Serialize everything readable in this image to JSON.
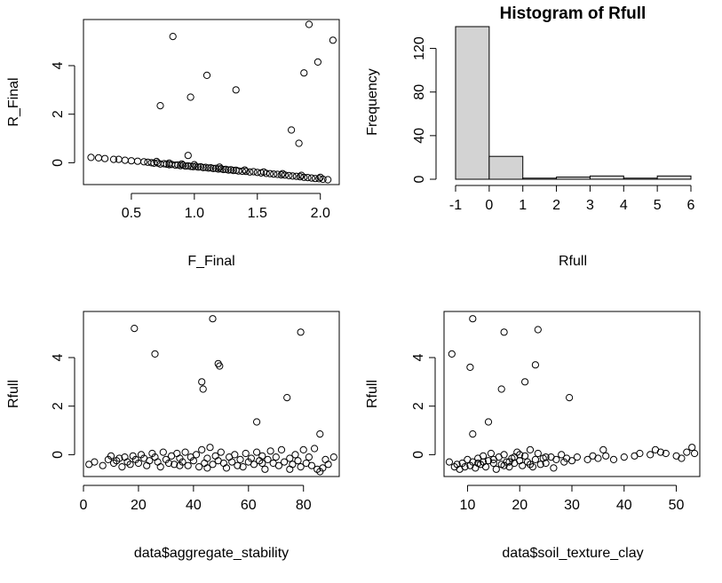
{
  "chart_data": [
    {
      "type": "scatter",
      "xlabel": "F_Final",
      "ylabel": "R_Final",
      "xlim": [
        0.12,
        2.15
      ],
      "ylim": [
        -0.9,
        5.9
      ],
      "xticks": [
        0.5,
        1.0,
        1.5,
        2.0
      ],
      "xtick_labels": [
        "0.5",
        "1.0",
        "1.5",
        "2.0"
      ],
      "yticks": [
        0,
        2,
        4
      ],
      "ytick_labels": [
        "0",
        "2",
        "4"
      ],
      "points": [
        [
          0.83,
          5.2
        ],
        [
          1.91,
          5.7
        ],
        [
          2.1,
          5.05
        ],
        [
          1.98,
          4.15
        ],
        [
          1.1,
          3.6
        ],
        [
          1.87,
          3.7
        ],
        [
          0.73,
          2.35
        ],
        [
          0.97,
          2.7
        ],
        [
          1.33,
          3.0
        ],
        [
          1.77,
          1.35
        ],
        [
          1.83,
          0.8
        ],
        [
          0.95,
          0.3
        ],
        [
          0.18,
          0.22
        ],
        [
          0.24,
          0.2
        ],
        [
          0.29,
          0.17
        ],
        [
          0.36,
          0.14
        ],
        [
          0.4,
          0.14
        ],
        [
          0.45,
          0.1
        ],
        [
          0.5,
          0.08
        ],
        [
          0.55,
          0.06
        ],
        [
          0.6,
          0.04
        ],
        [
          0.63,
          0.02
        ],
        [
          0.66,
          0.0
        ],
        [
          0.68,
          -0.02
        ],
        [
          0.71,
          -0.01
        ],
        [
          0.73,
          -0.05
        ],
        [
          0.76,
          -0.04
        ],
        [
          0.78,
          -0.06
        ],
        [
          0.8,
          -0.08
        ],
        [
          0.82,
          -0.07
        ],
        [
          0.85,
          -0.1
        ],
        [
          0.87,
          -0.09
        ],
        [
          0.89,
          -0.12
        ],
        [
          0.91,
          -0.1
        ],
        [
          0.93,
          -0.14
        ],
        [
          0.95,
          -0.13
        ],
        [
          0.97,
          -0.15
        ],
        [
          0.99,
          -0.16
        ],
        [
          1.01,
          -0.15
        ],
        [
          1.03,
          -0.18
        ],
        [
          1.05,
          -0.17
        ],
        [
          1.07,
          -0.2
        ],
        [
          1.09,
          -0.19
        ],
        [
          1.11,
          -0.22
        ],
        [
          1.13,
          -0.21
        ],
        [
          1.15,
          -0.24
        ],
        [
          1.17,
          -0.23
        ],
        [
          1.19,
          -0.26
        ],
        [
          1.21,
          -0.25
        ],
        [
          1.23,
          -0.28
        ],
        [
          1.25,
          -0.27
        ],
        [
          1.27,
          -0.3
        ],
        [
          1.29,
          -0.29
        ],
        [
          1.31,
          -0.32
        ],
        [
          1.33,
          -0.31
        ],
        [
          1.35,
          -0.34
        ],
        [
          1.38,
          -0.35
        ],
        [
          1.41,
          -0.36
        ],
        [
          1.44,
          -0.38
        ],
        [
          1.47,
          -0.37
        ],
        [
          1.5,
          -0.4
        ],
        [
          1.53,
          -0.42
        ],
        [
          1.57,
          -0.44
        ],
        [
          1.6,
          -0.45
        ],
        [
          1.63,
          -0.47
        ],
        [
          1.66,
          -0.48
        ],
        [
          1.69,
          -0.5
        ],
        [
          1.72,
          -0.51
        ],
        [
          1.75,
          -0.53
        ],
        [
          1.78,
          -0.55
        ],
        [
          1.81,
          -0.56
        ],
        [
          1.84,
          -0.58
        ],
        [
          1.87,
          -0.6
        ],
        [
          1.9,
          -0.61
        ],
        [
          1.93,
          -0.63
        ],
        [
          1.96,
          -0.65
        ],
        [
          1.99,
          -0.66
        ],
        [
          2.02,
          -0.68
        ],
        [
          2.06,
          -0.7
        ],
        [
          0.7,
          0.05
        ],
        [
          0.8,
          -0.02
        ],
        [
          0.9,
          -0.05
        ],
        [
          1.0,
          -0.08
        ],
        [
          1.2,
          -0.18
        ],
        [
          1.4,
          -0.3
        ],
        [
          1.55,
          -0.38
        ],
        [
          1.7,
          -0.45
        ],
        [
          1.85,
          -0.52
        ],
        [
          2.0,
          -0.6
        ]
      ]
    },
    {
      "type": "bar",
      "title": "Histogram of Rfull",
      "xlabel": "Rfull",
      "ylabel": "Frequency",
      "bins": [
        [
          -1,
          0
        ],
        [
          0,
          1
        ],
        [
          1,
          2
        ],
        [
          2,
          3
        ],
        [
          3,
          4
        ],
        [
          4,
          5
        ],
        [
          5,
          6
        ]
      ],
      "values": [
        140,
        21,
        1,
        2,
        3,
        1,
        3
      ],
      "xlim": [
        -1,
        6
      ],
      "ylim": [
        0,
        140
      ],
      "xticks": [
        -1,
        0,
        1,
        2,
        3,
        4,
        5,
        6
      ],
      "xtick_labels": [
        "-1",
        "0",
        "1",
        "2",
        "3",
        "4",
        "5",
        "6"
      ],
      "yticks": [
        0,
        40,
        80,
        120
      ],
      "ytick_labels": [
        "0",
        "40",
        "80",
        "120"
      ],
      "bar_color": "#d3d3d3"
    },
    {
      "type": "scatter",
      "xlabel": "data$aggregate_stability",
      "ylabel": "Rfull",
      "xlim": [
        0,
        93
      ],
      "ylim": [
        -0.9,
        5.9
      ],
      "xticks": [
        0,
        20,
        40,
        60,
        80
      ],
      "xtick_labels": [
        "0",
        "20",
        "40",
        "60",
        "80"
      ],
      "yticks": [
        0,
        2,
        4
      ],
      "ytick_labels": [
        "0",
        "2",
        "4"
      ],
      "points": [
        [
          18.5,
          5.2
        ],
        [
          47,
          5.6
        ],
        [
          79,
          5.05
        ],
        [
          26,
          4.15
        ],
        [
          49,
          3.75
        ],
        [
          49.5,
          3.65
        ],
        [
          43,
          3.0
        ],
        [
          43.5,
          2.7
        ],
        [
          74,
          2.35
        ],
        [
          63,
          1.35
        ],
        [
          86,
          0.85
        ],
        [
          2,
          -0.4
        ],
        [
          4,
          -0.3
        ],
        [
          7,
          -0.45
        ],
        [
          9,
          -0.2
        ],
        [
          11,
          -0.35
        ],
        [
          13,
          -0.15
        ],
        [
          14,
          -0.5
        ],
        [
          15,
          -0.1
        ],
        [
          16,
          -0.3
        ],
        [
          17,
          -0.4
        ],
        [
          18,
          -0.05
        ],
        [
          19,
          -0.2
        ],
        [
          20,
          -0.35
        ],
        [
          21,
          0.0
        ],
        [
          22,
          -0.15
        ],
        [
          23,
          -0.45
        ],
        [
          24,
          -0.25
        ],
        [
          25,
          0.05
        ],
        [
          26,
          -0.1
        ],
        [
          27,
          -0.3
        ],
        [
          28,
          -0.5
        ],
        [
          29,
          0.1
        ],
        [
          30,
          -0.2
        ],
        [
          31,
          -0.35
        ],
        [
          32,
          -0.05
        ],
        [
          33,
          -0.4
        ],
        [
          34,
          0.05
        ],
        [
          35,
          -0.15
        ],
        [
          36,
          -0.3
        ],
        [
          37,
          0.1
        ],
        [
          38,
          -0.45
        ],
        [
          39,
          -0.1
        ],
        [
          40,
          -0.25
        ],
        [
          41,
          0.0
        ],
        [
          42,
          -0.5
        ],
        [
          43,
          0.2
        ],
        [
          44,
          -0.35
        ],
        [
          45,
          -0.15
        ],
        [
          46,
          0.3
        ],
        [
          47,
          -0.4
        ],
        [
          48,
          -0.05
        ],
        [
          49,
          -0.25
        ],
        [
          50,
          0.1
        ],
        [
          51,
          -0.35
        ],
        [
          52,
          -0.55
        ],
        [
          53,
          -0.1
        ],
        [
          54,
          -0.3
        ],
        [
          55,
          0.0
        ],
        [
          56,
          -0.45
        ],
        [
          57,
          -0.2
        ],
        [
          58,
          -0.5
        ],
        [
          59,
          0.05
        ],
        [
          60,
          -0.3
        ],
        [
          61,
          -0.15
        ],
        [
          62,
          -0.4
        ],
        [
          63,
          0.1
        ],
        [
          64,
          -0.25
        ],
        [
          65,
          -0.05
        ],
        [
          66,
          -0.6
        ],
        [
          67,
          -0.2
        ],
        [
          68,
          0.15
        ],
        [
          69,
          -0.35
        ],
        [
          70,
          -0.1
        ],
        [
          71,
          -0.45
        ],
        [
          72,
          0.2
        ],
        [
          73,
          -0.3
        ],
        [
          75,
          -0.15
        ],
        [
          76,
          -0.4
        ],
        [
          77,
          0.0
        ],
        [
          78,
          -0.25
        ],
        [
          79,
          -0.5
        ],
        [
          80,
          0.2
        ],
        [
          81,
          -0.35
        ],
        [
          82,
          -0.1
        ],
        [
          83,
          -0.45
        ],
        [
          84,
          0.25
        ],
        [
          85,
          -0.6
        ],
        [
          86,
          -0.7
        ],
        [
          87,
          -0.55
        ],
        [
          88,
          -0.2
        ],
        [
          89,
          -0.4
        ],
        [
          91,
          -0.1
        ],
        [
          10,
          -0.05
        ],
        [
          12,
          -0.25
        ],
        [
          35,
          -0.45
        ],
        [
          45,
          -0.55
        ],
        [
          65,
          -0.35
        ],
        [
          75,
          -0.6
        ]
      ]
    },
    {
      "type": "scatter",
      "xlabel": "data$soil_texture_clay",
      "ylabel": "Rfull",
      "xlim": [
        5.5,
        54.5
      ],
      "ylim": [
        -0.9,
        5.9
      ],
      "xticks": [
        10,
        20,
        30,
        40,
        50
      ],
      "xtick_labels": [
        "10",
        "20",
        "30",
        "40",
        "50"
      ],
      "yticks": [
        0,
        2,
        4
      ],
      "ytick_labels": [
        "0",
        "2",
        "4"
      ],
      "points": [
        [
          11,
          5.6
        ],
        [
          23.5,
          5.15
        ],
        [
          17,
          5.05
        ],
        [
          7,
          4.15
        ],
        [
          10.5,
          3.6
        ],
        [
          23,
          3.7
        ],
        [
          21,
          3.0
        ],
        [
          16.5,
          2.7
        ],
        [
          29.5,
          2.35
        ],
        [
          14,
          1.35
        ],
        [
          11,
          0.85
        ],
        [
          6.5,
          -0.3
        ],
        [
          7.5,
          -0.5
        ],
        [
          8,
          -0.4
        ],
        [
          8.5,
          -0.6
        ],
        [
          9,
          -0.35
        ],
        [
          9.5,
          -0.5
        ],
        [
          10,
          -0.2
        ],
        [
          10.5,
          -0.45
        ],
        [
          11,
          -0.3
        ],
        [
          11.5,
          -0.55
        ],
        [
          12,
          -0.15
        ],
        [
          12.5,
          -0.4
        ],
        [
          13,
          -0.05
        ],
        [
          13.5,
          -0.5
        ],
        [
          14,
          -0.25
        ],
        [
          14.5,
          0.05
        ],
        [
          15,
          -0.35
        ],
        [
          15.5,
          -0.6
        ],
        [
          16,
          -0.1
        ],
        [
          16.5,
          -0.4
        ],
        [
          17,
          0.0
        ],
        [
          17.5,
          -0.3
        ],
        [
          18,
          -0.5
        ],
        [
          18.5,
          -0.15
        ],
        [
          19,
          -0.35
        ],
        [
          19.5,
          0.1
        ],
        [
          20,
          -0.25
        ],
        [
          20.5,
          -0.45
        ],
        [
          21,
          -0.05
        ],
        [
          21.5,
          -0.3
        ],
        [
          22,
          0.2
        ],
        [
          22.5,
          -0.5
        ],
        [
          23,
          -0.2
        ],
        [
          23.5,
          0.05
        ],
        [
          24,
          -0.4
        ],
        [
          24.5,
          -0.15
        ],
        [
          25,
          -0.35
        ],
        [
          26,
          -0.1
        ],
        [
          26.5,
          -0.55
        ],
        [
          27,
          -0.2
        ],
        [
          28,
          0.0
        ],
        [
          28.5,
          -0.3
        ],
        [
          29,
          -0.15
        ],
        [
          30,
          -0.25
        ],
        [
          31,
          -0.1
        ],
        [
          33,
          -0.2
        ],
        [
          34,
          -0.05
        ],
        [
          35,
          -0.15
        ],
        [
          36,
          0.2
        ],
        [
          36.5,
          -0.05
        ],
        [
          38,
          -0.2
        ],
        [
          40,
          -0.1
        ],
        [
          42,
          -0.05
        ],
        [
          43,
          0.05
        ],
        [
          45,
          0.0
        ],
        [
          46,
          0.2
        ],
        [
          47,
          0.1
        ],
        [
          48,
          0.05
        ],
        [
          50,
          -0.05
        ],
        [
          51,
          -0.15
        ],
        [
          52,
          0.1
        ],
        [
          53,
          0.3
        ],
        [
          53.5,
          0.05
        ],
        [
          12,
          -0.35
        ],
        [
          15,
          -0.2
        ],
        [
          18,
          -0.3
        ],
        [
          20,
          0.0
        ],
        [
          22,
          -0.4
        ],
        [
          25,
          -0.1
        ],
        [
          17,
          -0.45
        ],
        [
          19,
          -0.1
        ],
        [
          13,
          -0.3
        ]
      ]
    }
  ]
}
